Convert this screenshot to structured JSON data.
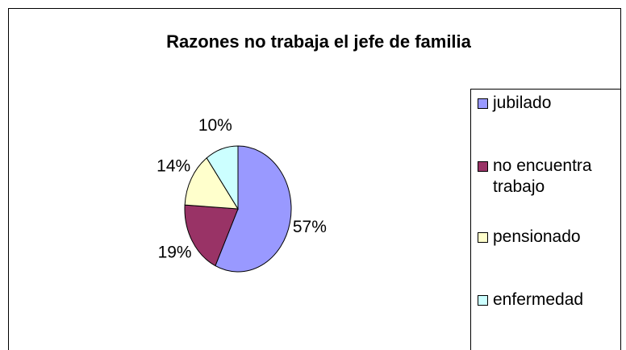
{
  "chart_data": {
    "type": "pie",
    "title": "Razones no trabaja el jefe de familia",
    "categories": [
      "jubilado",
      "no encuentra trabajo",
      "pensionado",
      "enfermedad"
    ],
    "values": [
      57,
      19,
      14,
      10
    ],
    "value_labels": [
      "57%",
      "19%",
      "14%",
      "10%"
    ],
    "colors": [
      "#9999ff",
      "#993366",
      "#ffffcc",
      "#ccffff"
    ],
    "legend": "right"
  }
}
